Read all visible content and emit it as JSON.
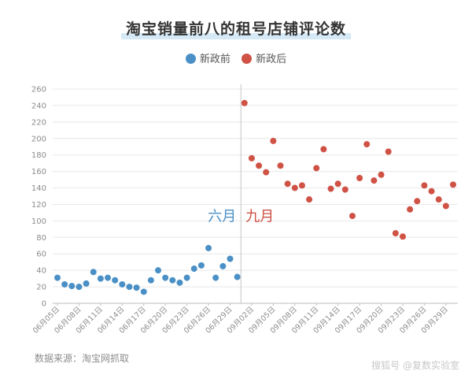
{
  "title": "淘宝销量前八的租号店铺评论数",
  "legend": [
    {
      "label": "新政前",
      "color": "#4a90c6"
    },
    {
      "label": "新政后",
      "color": "#cf5245"
    }
  ],
  "source": "数据来源：淘宝网抓取",
  "watermark": "搜狐号 @复数实验室",
  "annotations": {
    "left": "六月",
    "right": "九月"
  },
  "chart_data": {
    "type": "scatter",
    "title": "淘宝销量前八的租号店铺评论数",
    "ylim": [
      0,
      260
    ],
    "yticks": [
      0,
      20,
      40,
      60,
      80,
      100,
      120,
      140,
      160,
      180,
      200,
      220,
      240,
      260
    ],
    "grid": true,
    "legend_position": "top",
    "x_tick_labels": [
      "06月05日",
      "06月08日",
      "06月11日",
      "06月14日",
      "06月17日",
      "06月20日",
      "06月23日",
      "06月26日",
      "06月29日",
      "09月02日",
      "09月05日",
      "09月08日",
      "09月11日",
      "09月14日",
      "09月17日",
      "09月20日",
      "09月23日",
      "09月26日",
      "09月29日"
    ],
    "x": [
      "06月05日",
      "06月06日",
      "06月07日",
      "06月08日",
      "06月09日",
      "06月10日",
      "06月11日",
      "06月12日",
      "06月13日",
      "06月14日",
      "06月15日",
      "06月16日",
      "06月17日",
      "06月18日",
      "06月19日",
      "06月20日",
      "06月21日",
      "06月22日",
      "06月23日",
      "06月24日",
      "06月25日",
      "06月26日",
      "06月27日",
      "06月28日",
      "06月29日",
      "06月30日",
      "09月01日",
      "09月02日",
      "09月03日",
      "09月04日",
      "09月05日",
      "09月06日",
      "09月07日",
      "09月08日",
      "09月09日",
      "09月10日",
      "09月11日",
      "09月12日",
      "09月13日",
      "09月14日",
      "09月15日",
      "09月16日",
      "09月17日",
      "09月18日",
      "09月19日",
      "09月20日",
      "09月21日",
      "09月22日",
      "09月23日",
      "09月24日",
      "09月25日",
      "09月26日",
      "09月27日",
      "09月28日",
      "09月29日",
      "09月30日"
    ],
    "series": [
      {
        "name": "新政前",
        "values": [
          31,
          23,
          21,
          20,
          24,
          38,
          30,
          31,
          28,
          23,
          20,
          19,
          14,
          28,
          40,
          31,
          28,
          25,
          31,
          42,
          46,
          67,
          31,
          45,
          54,
          32,
          null,
          null,
          null,
          null,
          null,
          null,
          null,
          null,
          null,
          null,
          null,
          null,
          null,
          null,
          null,
          null,
          null,
          null,
          null,
          null,
          null,
          null,
          null,
          null,
          null,
          null,
          null,
          null,
          null,
          null
        ]
      },
      {
        "name": "新政后",
        "values": [
          null,
          null,
          null,
          null,
          null,
          null,
          null,
          null,
          null,
          null,
          null,
          null,
          null,
          null,
          null,
          null,
          null,
          null,
          null,
          null,
          null,
          null,
          null,
          null,
          null,
          null,
          243,
          176,
          167,
          159,
          197,
          167,
          145,
          140,
          143,
          126,
          164,
          187,
          139,
          145,
          138,
          106,
          152,
          193,
          149,
          156,
          184,
          85,
          81,
          114,
          124,
          143,
          136,
          126,
          118,
          144
        ]
      }
    ]
  }
}
